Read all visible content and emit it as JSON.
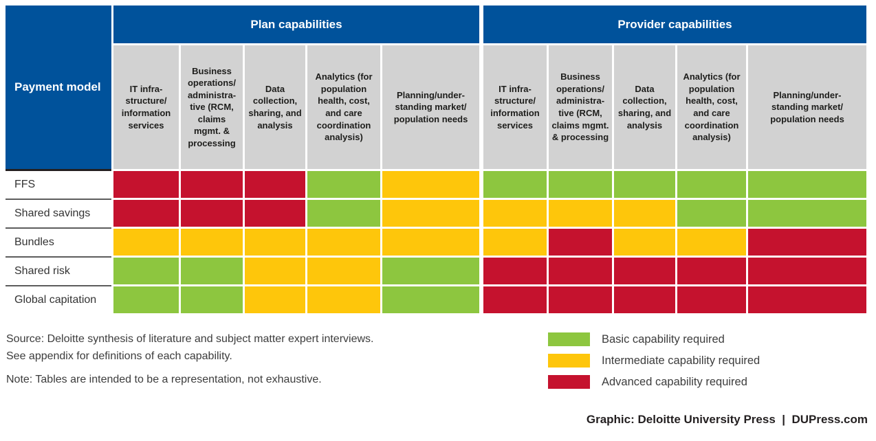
{
  "colors": {
    "header_blue": "#00529b",
    "header_gray": "#d2d2d2",
    "basic_green": "#8dc63f",
    "intermediate_yellow": "#fec60b",
    "advanced_red": "#c5122e"
  },
  "table": {
    "corner_label": "Payment model",
    "sections": [
      {
        "label": "Plan capabilities",
        "columns": [
          "IT infra-\nstructure/\ninformation\nservices",
          "Business\noperations/\nadministra-\ntive (RCM,\nclaims\nmgmt. &\nprocessing",
          "Data\ncollection,\nsharing, and\nanalysis",
          "Analytics (for\npopulation\nhealth, cost,\nand care\ncoordination\nanalysis)",
          "Planning/under-\nstanding market/\npopulation needs"
        ]
      },
      {
        "label": "Provider capabilities",
        "columns": [
          "IT infra-\nstructure/\ninformation\nservices",
          "Business\noperations/\nadministra-\ntive (RCM,\nclaims mgmt.\n& processing",
          "Data\ncollection,\nsharing, and\nanalysis",
          "Analytics (for\npopulation\nhealth, cost,\nand care\ncoordination\nanalysis)",
          "Planning/under-\nstanding market/\npopulation needs"
        ]
      }
    ],
    "rows": [
      {
        "label": "FFS",
        "plan": [
          "advanced",
          "advanced",
          "advanced",
          "basic",
          "intermediate"
        ],
        "provider": [
          "basic",
          "basic",
          "basic",
          "basic",
          "basic"
        ]
      },
      {
        "label": "Shared savings",
        "plan": [
          "advanced",
          "advanced",
          "advanced",
          "basic",
          "intermediate"
        ],
        "provider": [
          "intermediate",
          "intermediate",
          "intermediate",
          "basic",
          "basic"
        ]
      },
      {
        "label": "Bundles",
        "plan": [
          "intermediate",
          "intermediate",
          "intermediate",
          "intermediate",
          "intermediate"
        ],
        "provider": [
          "intermediate",
          "advanced",
          "intermediate",
          "intermediate",
          "advanced"
        ]
      },
      {
        "label": "Shared risk",
        "plan": [
          "basic",
          "basic",
          "intermediate",
          "intermediate",
          "basic"
        ],
        "provider": [
          "advanced",
          "advanced",
          "advanced",
          "advanced",
          "advanced"
        ]
      },
      {
        "label": "Global capitation",
        "plan": [
          "basic",
          "basic",
          "intermediate",
          "intermediate",
          "basic"
        ],
        "provider": [
          "advanced",
          "advanced",
          "advanced",
          "advanced",
          "advanced"
        ]
      }
    ]
  },
  "legend": {
    "items": [
      {
        "level": "basic",
        "color": "#8dc63f",
        "label": "Basic capability required"
      },
      {
        "level": "intermediate",
        "color": "#fec60b",
        "label": "Intermediate capability required"
      },
      {
        "level": "advanced",
        "color": "#c5122e",
        "label": "Advanced capability required"
      }
    ]
  },
  "notes": {
    "source_line1": "Source: Deloitte synthesis of literature and subject matter expert interviews.",
    "source_line2": "See appendix for definitions of each capability.",
    "note_line": "Note: Tables are intended to be a representation, not exhaustive."
  },
  "footer": {
    "credit": "Graphic: Deloitte University Press  |  DUPress.com"
  },
  "chart_data": {
    "type": "heatmap",
    "title": "",
    "row_axis_label": "Payment model",
    "rows": [
      "FFS",
      "Shared savings",
      "Bundles",
      "Shared risk",
      "Global capitation"
    ],
    "column_groups": [
      "Plan capabilities",
      "Provider capabilities"
    ],
    "columns_per_group": [
      "IT infrastructure/information services",
      "Business operations/administrative (RCM, claims mgmt. & processing",
      "Data collection, sharing, and analysis",
      "Analytics (for population health, cost, and care coordination analysis)",
      "Planning/understanding market/population needs"
    ],
    "value_scale": [
      "basic",
      "intermediate",
      "advanced"
    ],
    "values_plan": [
      [
        "advanced",
        "advanced",
        "advanced",
        "basic",
        "intermediate"
      ],
      [
        "advanced",
        "advanced",
        "advanced",
        "basic",
        "intermediate"
      ],
      [
        "intermediate",
        "intermediate",
        "intermediate",
        "intermediate",
        "intermediate"
      ],
      [
        "basic",
        "basic",
        "intermediate",
        "intermediate",
        "basic"
      ],
      [
        "basic",
        "basic",
        "intermediate",
        "intermediate",
        "basic"
      ]
    ],
    "values_provider": [
      [
        "basic",
        "basic",
        "basic",
        "basic",
        "basic"
      ],
      [
        "intermediate",
        "intermediate",
        "intermediate",
        "basic",
        "basic"
      ],
      [
        "intermediate",
        "advanced",
        "intermediate",
        "intermediate",
        "advanced"
      ],
      [
        "advanced",
        "advanced",
        "advanced",
        "advanced",
        "advanced"
      ],
      [
        "advanced",
        "advanced",
        "advanced",
        "advanced",
        "advanced"
      ]
    ],
    "legend_position": "bottom-right",
    "legend_entries": [
      {
        "label": "Basic capability required",
        "color": "#8dc63f"
      },
      {
        "label": "Intermediate capability required",
        "color": "#fec60b"
      },
      {
        "label": "Advanced capability required",
        "color": "#c5122e"
      }
    ]
  }
}
